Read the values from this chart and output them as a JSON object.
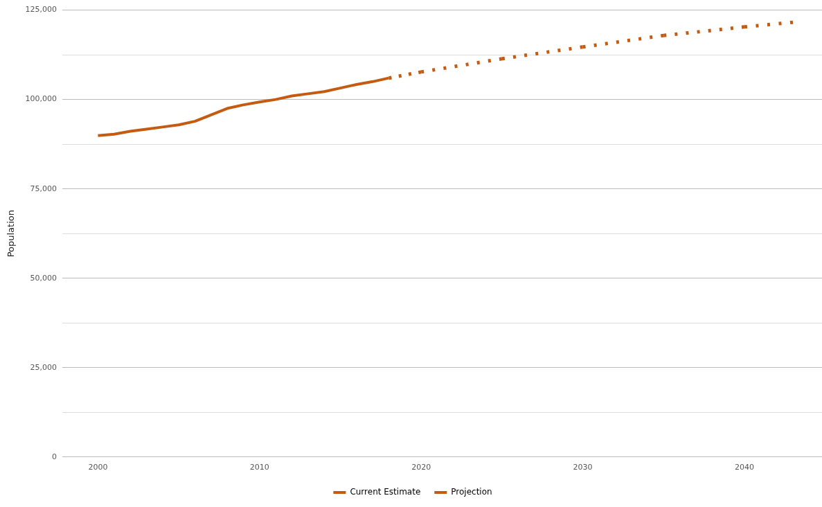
{
  "chart_data": {
    "type": "line",
    "ylabel": "Population",
    "xlim": [
      1997.8,
      2044.8
    ],
    "xticks": [
      2000,
      2010,
      2020,
      2030,
      2040
    ],
    "ylim": [
      0,
      125000
    ],
    "yticks": [
      {
        "value": 0,
        "label": "0"
      },
      {
        "value": 12500,
        "label": null
      },
      {
        "value": 25000,
        "label": "25,000"
      },
      {
        "value": 37500,
        "label": null
      },
      {
        "value": 50000,
        "label": "50,000"
      },
      {
        "value": 62500,
        "label": null
      },
      {
        "value": 75000,
        "label": "75,000"
      },
      {
        "value": 87500,
        "label": null
      },
      {
        "value": 100000,
        "label": "100,000"
      },
      {
        "value": 112500,
        "label": null
      },
      {
        "value": 125000,
        "label": "125,000"
      }
    ],
    "grid": "y",
    "legend": "bottom",
    "series": [
      {
        "name": "Current Estimate",
        "color": "#c55a11",
        "line_style": "solid",
        "marker": "none",
        "x": [
          2000,
          2001,
          2002,
          2003,
          2004,
          2005,
          2006,
          2007,
          2008,
          2009,
          2010,
          2011,
          2012,
          2013,
          2014,
          2015,
          2016,
          2017,
          2018
        ],
        "values": [
          89900,
          90300,
          91100,
          91700,
          92300,
          92900,
          93900,
          95700,
          97500,
          98500,
          99300,
          100000,
          101000,
          101600,
          102200,
          103200,
          104200,
          105000,
          106000
        ]
      },
      {
        "name": "Projection",
        "color": "#c55a11",
        "line_style": "dotted",
        "marker": "none",
        "x": [
          2018,
          2020,
          2025,
          2030,
          2035,
          2040,
          2043
        ],
        "values": [
          106000,
          107700,
          111400,
          114700,
          117900,
          120300,
          121600
        ]
      }
    ]
  }
}
